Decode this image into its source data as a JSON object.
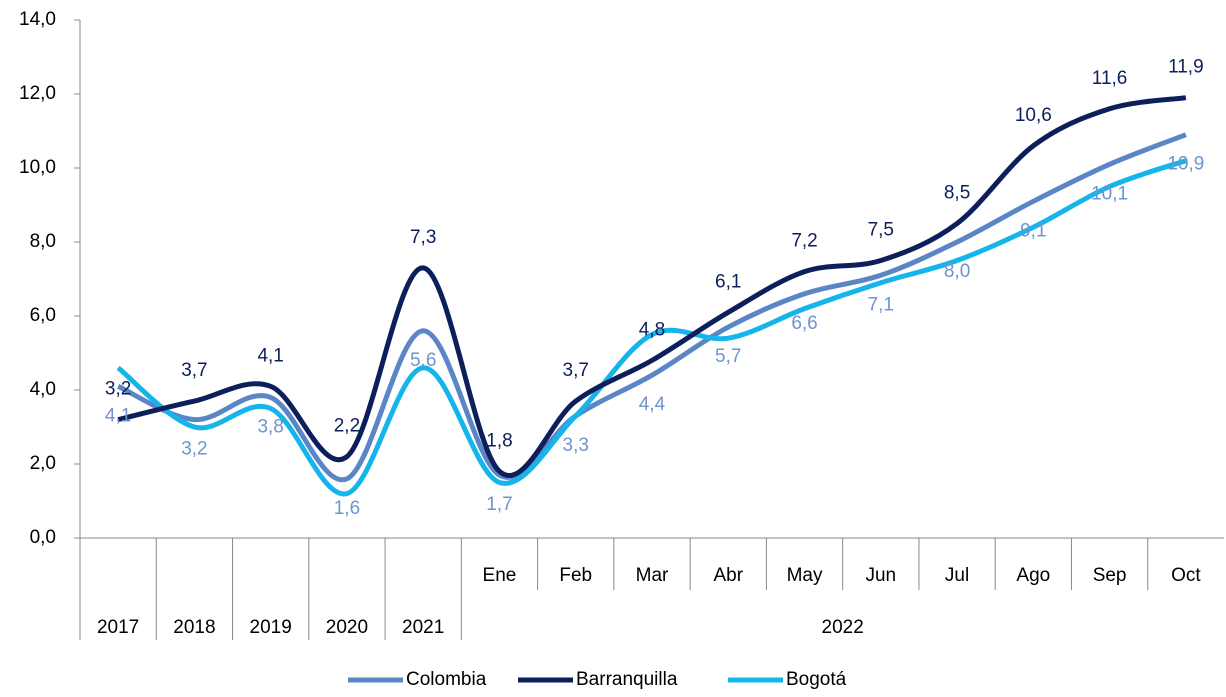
{
  "chart_data": {
    "type": "line",
    "categories": [
      "2017",
      "2018",
      "2019",
      "2020",
      "2021",
      "Ene",
      "Feb",
      "Mar",
      "Abr",
      "May",
      "Jun",
      "Jul",
      "Ago",
      "Sep",
      "Oct"
    ],
    "group_label": "2022",
    "series": [
      {
        "name": "Colombia",
        "color": "#5b86c6",
        "label_color": "#6e94d0",
        "values": [
          4.1,
          3.2,
          3.8,
          1.6,
          5.6,
          1.7,
          3.3,
          4.4,
          5.7,
          6.6,
          7.1,
          8.0,
          9.1,
          10.1,
          10.9
        ],
        "value_labels": [
          "4,1",
          "3,2",
          "3,8",
          "1,6",
          "5,6",
          "1,7",
          "3,3",
          "4,4",
          "5,7",
          "6,6",
          "7,1",
          "8,0",
          "9,1",
          "10,1",
          "10,9"
        ]
      },
      {
        "name": "Barranquilla",
        "color": "#0c1f5a",
        "label_color": "#0c1f5a",
        "values": [
          3.2,
          3.7,
          4.1,
          2.2,
          7.3,
          1.8,
          3.7,
          4.8,
          6.1,
          7.2,
          7.5,
          8.5,
          10.6,
          11.6,
          11.9
        ],
        "value_labels": [
          "3,2",
          "3,7",
          "4,1",
          "2,2",
          "7,3",
          "1,8",
          "3,7",
          "4,8",
          "6,1",
          "7,2",
          "7,5",
          "8,5",
          "10,6",
          "11,6",
          "11,9"
        ]
      },
      {
        "name": "Bogotá",
        "color": "#15b4ea",
        "values": [
          4.6,
          3.0,
          3.5,
          1.2,
          4.6,
          1.5,
          3.3,
          5.5,
          5.4,
          6.2,
          6.9,
          7.5,
          8.4,
          9.5,
          10.2
        ]
      }
    ],
    "ylim": [
      0,
      14
    ],
    "yticks": [
      {
        "value": 0,
        "label": "0,0"
      },
      {
        "value": 2,
        "label": "2,0"
      },
      {
        "value": 4,
        "label": "4,0"
      },
      {
        "value": 6,
        "label": "6,0"
      },
      {
        "value": 8,
        "label": "8,0"
      },
      {
        "value": 10,
        "label": "10,0"
      },
      {
        "value": 12,
        "label": "12,0"
      },
      {
        "value": 14,
        "label": "14,0"
      }
    ],
    "legend": "bottom"
  }
}
